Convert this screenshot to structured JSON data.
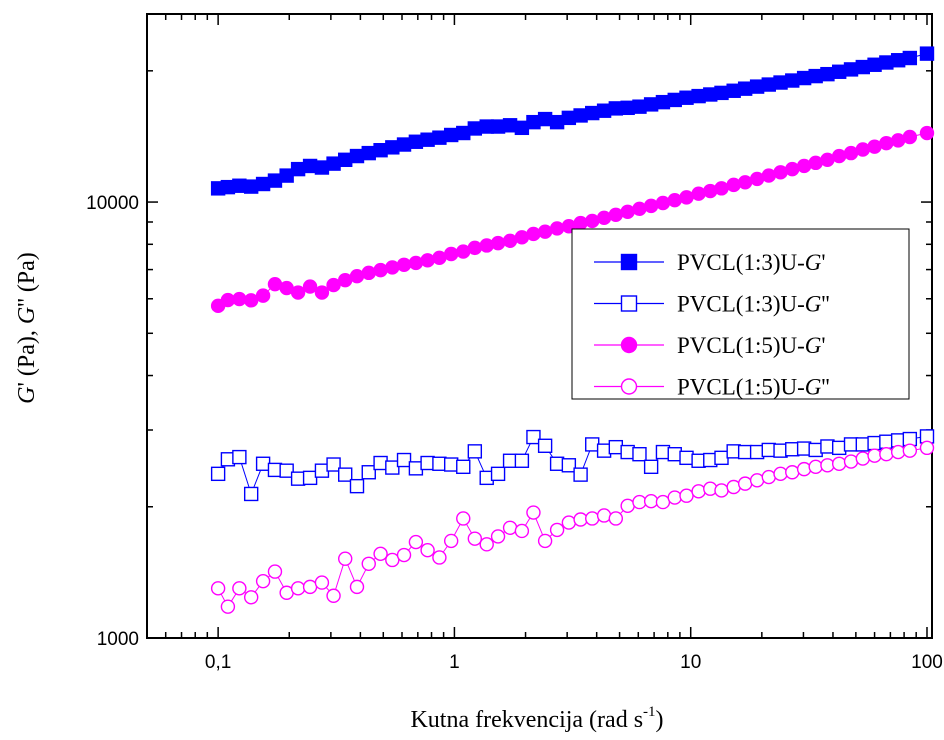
{
  "chart_data": {
    "type": "scatter",
    "xscale": "log",
    "yscale": "log",
    "xlim": [
      0.05,
      105
    ],
    "ylim": [
      1000,
      27000
    ],
    "xticks": [
      0.1,
      1,
      10,
      100
    ],
    "xtick_labels": [
      "0,1",
      "1",
      "10",
      "100"
    ],
    "yticks": [
      1000,
      10000
    ],
    "ytick_labels": [
      "1000",
      "10000"
    ],
    "xlabel": "Kutna frekvencija (rad s",
    "xlabel_sup": "-1",
    "xlabel_end": ")",
    "ylabel_parts": [
      "G",
      "' (Pa), ",
      "G",
      "'' (Pa)"
    ],
    "grid": false,
    "legend_position": "center-right",
    "x": [
      0.1,
      0.11,
      0.123,
      0.138,
      0.155,
      0.174,
      0.195,
      0.218,
      0.245,
      0.275,
      0.308,
      0.345,
      0.387,
      0.434,
      0.487,
      0.546,
      0.612,
      0.687,
      0.77,
      0.864,
      0.969,
      1.09,
      1.22,
      1.37,
      1.53,
      1.72,
      1.93,
      2.16,
      2.42,
      2.72,
      3.05,
      3.42,
      3.83,
      4.3,
      4.82,
      5.41,
      6.07,
      6.8,
      7.63,
      8.56,
      9.6,
      10.8,
      12.1,
      13.5,
      15.2,
      17.0,
      19.1,
      21.4,
      24.0,
      26.9,
      30.2,
      33.8,
      37.9,
      42.5,
      47.7,
      53.5,
      60.0,
      67.3,
      75.5,
      84.6,
      100.0
    ],
    "series": [
      {
        "name": "PVCL(1:3)U-G'",
        "color": "#0000ff",
        "marker": "square",
        "filled": true,
        "values": [
          10750,
          10820,
          10900,
          10850,
          11000,
          11200,
          11500,
          11900,
          12100,
          12000,
          12250,
          12500,
          12750,
          12950,
          13150,
          13350,
          13550,
          13750,
          13900,
          14050,
          14250,
          14400,
          14750,
          14900,
          14900,
          15000,
          14800,
          15250,
          15500,
          15250,
          15600,
          15800,
          16000,
          16200,
          16400,
          16450,
          16550,
          16750,
          16950,
          17150,
          17350,
          17500,
          17650,
          17800,
          18000,
          18200,
          18400,
          18600,
          18800,
          19000,
          19250,
          19450,
          19650,
          19900,
          20150,
          20400,
          20650,
          20900,
          21150,
          21400,
          21900
        ]
      },
      {
        "name": "PVCL(1:3)U-G''",
        "color": "#0000ff",
        "marker": "square",
        "filled": false,
        "values": [
          2380,
          2570,
          2600,
          2140,
          2510,
          2430,
          2420,
          2320,
          2330,
          2420,
          2500,
          2370,
          2230,
          2400,
          2520,
          2460,
          2560,
          2450,
          2520,
          2510,
          2500,
          2470,
          2680,
          2330,
          2380,
          2550,
          2550,
          2890,
          2760,
          2510,
          2490,
          2370,
          2780,
          2690,
          2740,
          2670,
          2640,
          2470,
          2670,
          2640,
          2590,
          2550,
          2560,
          2590,
          2680,
          2670,
          2670,
          2700,
          2690,
          2710,
          2720,
          2700,
          2750,
          2730,
          2780,
          2780,
          2800,
          2820,
          2840,
          2860,
          2900
        ]
      },
      {
        "name": "PVCL(1:5)U-G'",
        "color": "#ff00ff",
        "marker": "circle",
        "filled": true,
        "values": [
          5780,
          5960,
          5990,
          5950,
          6100,
          6480,
          6350,
          6200,
          6400,
          6200,
          6450,
          6620,
          6760,
          6880,
          6980,
          7080,
          7180,
          7250,
          7350,
          7450,
          7600,
          7700,
          7850,
          7950,
          8050,
          8150,
          8300,
          8450,
          8550,
          8700,
          8800,
          8950,
          9050,
          9200,
          9350,
          9500,
          9650,
          9800,
          9950,
          10100,
          10250,
          10450,
          10600,
          10750,
          10950,
          11100,
          11300,
          11500,
          11700,
          11900,
          12100,
          12300,
          12500,
          12750,
          12950,
          13200,
          13400,
          13650,
          13850,
          14100,
          14400
        ]
      },
      {
        "name": "PVCL(1:5)U-G''",
        "color": "#ff00ff",
        "marker": "circle",
        "filled": false,
        "values": [
          1300,
          1180,
          1300,
          1240,
          1350,
          1420,
          1270,
          1300,
          1310,
          1340,
          1250,
          1520,
          1310,
          1480,
          1560,
          1510,
          1550,
          1660,
          1590,
          1530,
          1670,
          1880,
          1690,
          1640,
          1710,
          1790,
          1760,
          1940,
          1670,
          1770,
          1840,
          1870,
          1880,
          1910,
          1880,
          2010,
          2050,
          2060,
          2050,
          2100,
          2120,
          2170,
          2200,
          2180,
          2220,
          2260,
          2300,
          2340,
          2380,
          2400,
          2440,
          2470,
          2490,
          2510,
          2540,
          2580,
          2620,
          2640,
          2670,
          2690,
          2730
        ]
      }
    ]
  }
}
